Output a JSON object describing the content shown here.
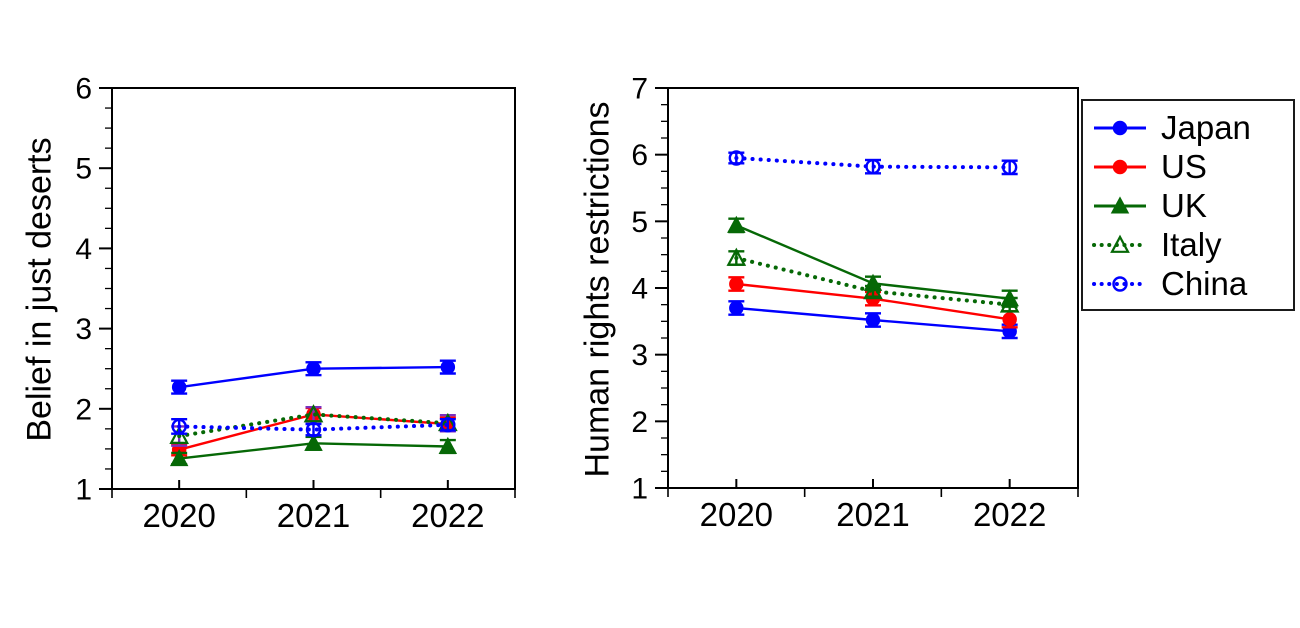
{
  "figure": {
    "background": "#ffffff"
  },
  "colors": {
    "japan": "#0000ff",
    "us": "#ff0000",
    "uk": "#066806",
    "italy": "#066806",
    "china": "#0000ff",
    "italy_error_left_chart": "#7b2fbe",
    "axis": "#000000"
  },
  "legend": {
    "items": [
      {
        "label": "Japan",
        "color": "#0000ff",
        "marker": "circle",
        "marker_fill": "filled",
        "line_style": "solid"
      },
      {
        "label": "US",
        "color": "#ff0000",
        "marker": "circle",
        "marker_fill": "filled",
        "line_style": "solid"
      },
      {
        "label": "UK",
        "color": "#066806",
        "marker": "triangle",
        "marker_fill": "filled",
        "line_style": "solid"
      },
      {
        "label": "Italy",
        "color": "#066806",
        "marker": "triangle",
        "marker_fill": "open",
        "line_style": "dotted"
      },
      {
        "label": "China",
        "color": "#0000ff",
        "marker": "circle",
        "marker_fill": "open",
        "line_style": "dotted"
      }
    ]
  },
  "chart_data": [
    {
      "type": "line",
      "title": "",
      "xlabel": "",
      "ylabel": "Belief in just deserts",
      "x": [
        "2020",
        "2021",
        "2022"
      ],
      "ylim": [
        1,
        6
      ],
      "yticks": [
        1,
        2,
        3,
        4,
        5,
        6
      ],
      "grid": false,
      "series": [
        {
          "name": "Japan",
          "color": "#0000ff",
          "marker": "circle",
          "marker_fill": "filled",
          "line_style": "solid",
          "values": [
            2.27,
            2.5,
            2.52
          ],
          "errors": [
            0.08,
            0.08,
            0.08
          ]
        },
        {
          "name": "US",
          "color": "#ff0000",
          "marker": "circle",
          "marker_fill": "filled",
          "line_style": "solid",
          "values": [
            1.49,
            1.93,
            1.81
          ],
          "errors": [
            0.07,
            0.08,
            0.08
          ]
        },
        {
          "name": "UK",
          "color": "#066806",
          "marker": "triangle",
          "marker_fill": "filled",
          "line_style": "solid",
          "values": [
            1.38,
            1.57,
            1.53
          ],
          "errors": [
            0.07,
            0.08,
            0.08
          ]
        },
        {
          "name": "Italy",
          "color": "#066806",
          "marker": "triangle",
          "marker_fill": "open",
          "line_style": "dotted",
          "values": [
            1.66,
            1.93,
            1.82
          ],
          "errors": [
            0.12,
            0.09,
            0.1
          ],
          "error_color": "#7b2fbe"
        },
        {
          "name": "China",
          "color": "#0000ff",
          "marker": "circle",
          "marker_fill": "open",
          "line_style": "dotted",
          "values": [
            1.78,
            1.74,
            1.8
          ],
          "errors": [
            0.09,
            0.07,
            0.07
          ]
        }
      ]
    },
    {
      "type": "line",
      "title": "",
      "xlabel": "",
      "ylabel": "Human rights restrictions",
      "x": [
        "2020",
        "2021",
        "2022"
      ],
      "ylim": [
        1,
        7
      ],
      "yticks": [
        1,
        2,
        3,
        4,
        5,
        6,
        7
      ],
      "grid": false,
      "series": [
        {
          "name": "Japan",
          "color": "#0000ff",
          "marker": "circle",
          "marker_fill": "filled",
          "line_style": "solid",
          "values": [
            3.7,
            3.52,
            3.35
          ],
          "errors": [
            0.1,
            0.1,
            0.1
          ]
        },
        {
          "name": "US",
          "color": "#ff0000",
          "marker": "circle",
          "marker_fill": "filled",
          "line_style": "solid",
          "values": [
            4.06,
            3.84,
            3.53
          ],
          "errors": [
            0.1,
            0.1,
            0.12
          ]
        },
        {
          "name": "UK",
          "color": "#066806",
          "marker": "triangle",
          "marker_fill": "filled",
          "line_style": "solid",
          "values": [
            4.94,
            4.07,
            3.84
          ],
          "errors": [
            0.1,
            0.1,
            0.12
          ]
        },
        {
          "name": "Italy",
          "color": "#066806",
          "marker": "triangle",
          "marker_fill": "open",
          "line_style": "dotted",
          "values": [
            4.45,
            3.95,
            3.75
          ],
          "errors": [
            0.1,
            0.08,
            0.1
          ]
        },
        {
          "name": "China",
          "color": "#0000ff",
          "marker": "circle",
          "marker_fill": "open",
          "line_style": "dotted",
          "values": [
            5.95,
            5.82,
            5.81
          ],
          "errors": [
            0.08,
            0.1,
            0.1
          ]
        }
      ]
    }
  ]
}
